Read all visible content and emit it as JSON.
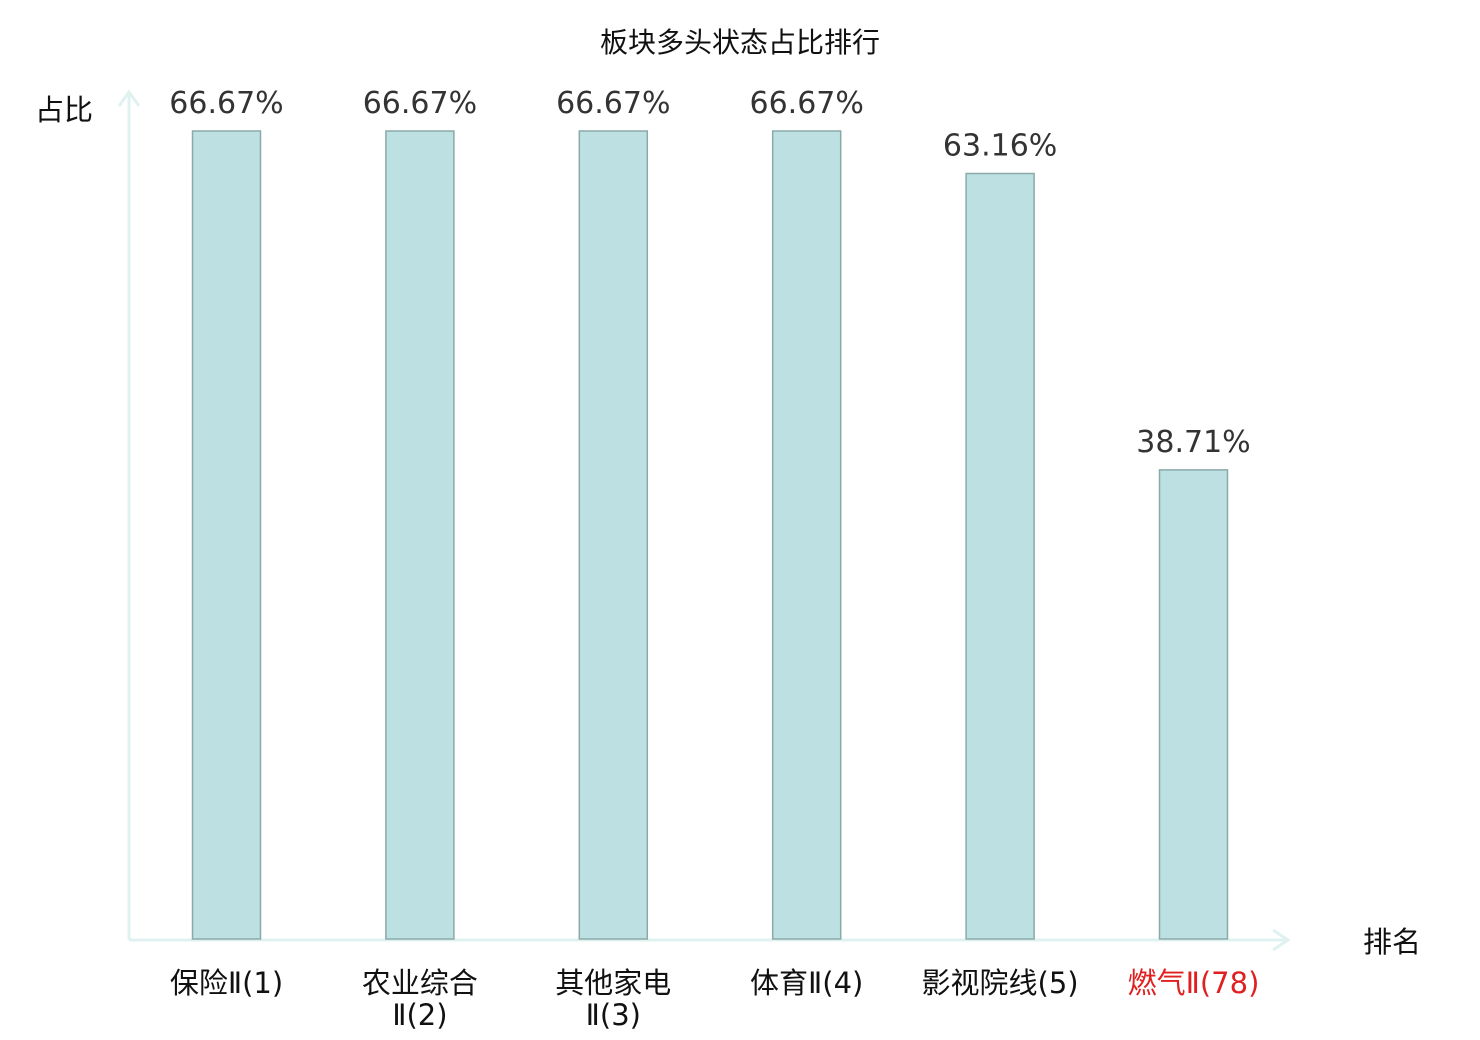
{
  "chart_data": {
    "type": "bar",
    "title": "板块多头状态占比排行",
    "ylabel": "占比",
    "xlabel": "排名",
    "ylim": [
      0,
      70
    ],
    "grid": false,
    "categories": [
      {
        "name": "保险Ⅱ",
        "rank": "(1)",
        "lines": [
          "保险Ⅱ(1)"
        ],
        "highlight": false
      },
      {
        "name": "农业综合Ⅱ",
        "rank": "(2)",
        "lines": [
          "农业综合",
          "Ⅱ(2)"
        ],
        "highlight": false
      },
      {
        "name": "其他家电Ⅱ",
        "rank": "(3)",
        "lines": [
          "其他家电",
          "Ⅱ(3)"
        ],
        "highlight": false
      },
      {
        "name": "体育Ⅱ",
        "rank": "(4)",
        "lines": [
          "体育Ⅱ(4)"
        ],
        "highlight": false
      },
      {
        "name": "影视院线",
        "rank": "(5)",
        "lines": [
          "影视院线(5)"
        ],
        "highlight": false
      },
      {
        "name": "燃气Ⅱ",
        "rank": "(78)",
        "lines": [
          "燃气Ⅱ(78)"
        ],
        "highlight": true
      }
    ],
    "values": [
      66.67,
      66.67,
      66.67,
      66.67,
      63.16,
      38.71
    ],
    "value_labels": [
      "66.67%",
      "66.67%",
      "66.67%",
      "66.67%",
      "63.16%",
      "38.71%"
    ],
    "colors": {
      "bar_fill": "#bde0e3",
      "bar_stroke": "#8aaaaa",
      "axis": "#e0f2f0",
      "highlight_label": "#e02020"
    }
  }
}
